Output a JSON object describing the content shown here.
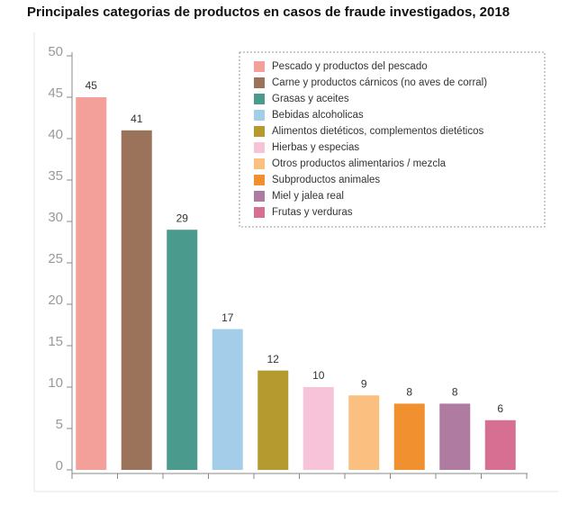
{
  "chart_data": {
    "type": "bar",
    "title": "Principales categorias de productos en casos de fraude investigados, 2018",
    "categories": [
      "Pescado y productos del pescado",
      "Carne y productos cárnicos (no aves de corral)",
      "Grasas y aceites",
      "Bebidas alcoholicas",
      "Alimentos dietéticos, complementos dietéticos",
      "Hierbas y especias",
      "Otros productos alimentarios / mezcla",
      "Subproductos animales",
      "Miel y jalea real",
      "Frutas y verduras"
    ],
    "values": [
      45,
      41,
      29,
      17,
      12,
      10,
      9,
      8,
      8,
      6
    ],
    "colors": [
      "#f4a09a",
      "#9a735a",
      "#4a9a8e",
      "#a4cdea",
      "#b59a30",
      "#f6c3d8",
      "#fbbf80",
      "#f0902f",
      "#b07ba0",
      "#d66f91"
    ],
    "ylim": [
      0,
      50
    ],
    "yticks": [
      0,
      5,
      10,
      15,
      20,
      25,
      30,
      35,
      40,
      45,
      50
    ],
    "legend": "upper right"
  }
}
